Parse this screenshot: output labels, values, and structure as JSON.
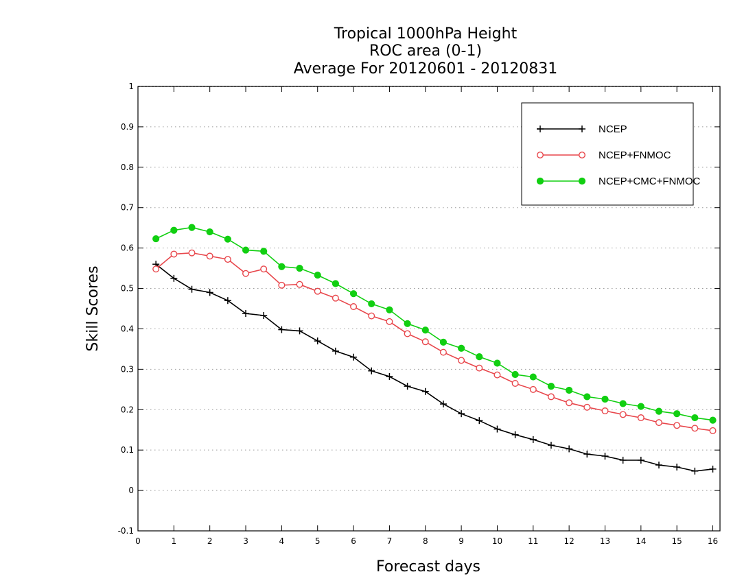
{
  "chart_data": {
    "type": "line",
    "title": [
      "Tropical 1000hPa Height",
      "ROC area (0-1)",
      "Average For 20120601 - 20120831"
    ],
    "xlabel": "Forecast days",
    "ylabel": "Skill Scores",
    "xlim": [
      0,
      16.2
    ],
    "ylim": [
      -0.1,
      1
    ],
    "xticks": [
      0,
      1,
      2,
      3,
      4,
      5,
      6,
      7,
      8,
      9,
      10,
      11,
      12,
      13,
      14,
      15,
      16
    ],
    "yticks": [
      -0.1,
      0,
      0.1,
      0.2,
      0.3,
      0.4,
      0.5,
      0.6,
      0.7,
      0.8,
      0.9,
      1
    ],
    "ytick_labels": [
      "-0.1",
      "0",
      "0.1",
      "0.2",
      "0.3",
      "0.4",
      "0.5",
      "0.6",
      "0.7",
      "0.8",
      "0.9",
      "1"
    ],
    "grid": "horizontal dotted",
    "legend_position": "top-right",
    "x": [
      0.5,
      1,
      1.5,
      2,
      2.5,
      3,
      3.5,
      4,
      4.5,
      5,
      5.5,
      6,
      6.5,
      7,
      7.5,
      8,
      8.5,
      9,
      9.5,
      10,
      10.5,
      11,
      11.5,
      12,
      12.5,
      13,
      13.5,
      14,
      14.5,
      15,
      15.5,
      16
    ],
    "series": [
      {
        "name": "NCEP",
        "color": "#000000",
        "marker": "plus",
        "values": [
          0.56,
          0.525,
          0.498,
          0.49,
          0.47,
          0.438,
          0.433,
          0.398,
          0.395,
          0.37,
          0.345,
          0.33,
          0.296,
          0.282,
          0.258,
          0.245,
          0.214,
          0.19,
          0.173,
          0.152,
          0.138,
          0.126,
          0.112,
          0.103,
          0.09,
          0.085,
          0.075,
          0.075,
          0.063,
          0.058,
          0.048,
          0.053
        ]
      },
      {
        "name": "NCEP+FNMOC",
        "color": "#e8474c",
        "marker": "open-circle",
        "values": [
          0.548,
          0.585,
          0.588,
          0.58,
          0.572,
          0.537,
          0.548,
          0.508,
          0.51,
          0.493,
          0.476,
          0.455,
          0.432,
          0.418,
          0.388,
          0.368,
          0.342,
          0.322,
          0.303,
          0.286,
          0.265,
          0.25,
          0.232,
          0.217,
          0.206,
          0.197,
          0.188,
          0.18,
          0.168,
          0.161,
          0.154,
          0.148
        ]
      },
      {
        "name": "NCEP+CMC+FNMOC",
        "color": "#11cf11",
        "marker": "filled-circle",
        "values": [
          0.623,
          0.644,
          0.651,
          0.64,
          0.622,
          0.595,
          0.592,
          0.554,
          0.55,
          0.533,
          0.512,
          0.487,
          0.462,
          0.447,
          0.413,
          0.397,
          0.367,
          0.352,
          0.331,
          0.315,
          0.287,
          0.281,
          0.258,
          0.248,
          0.232,
          0.226,
          0.215,
          0.208,
          0.196,
          0.19,
          0.18,
          0.174
        ]
      }
    ]
  }
}
